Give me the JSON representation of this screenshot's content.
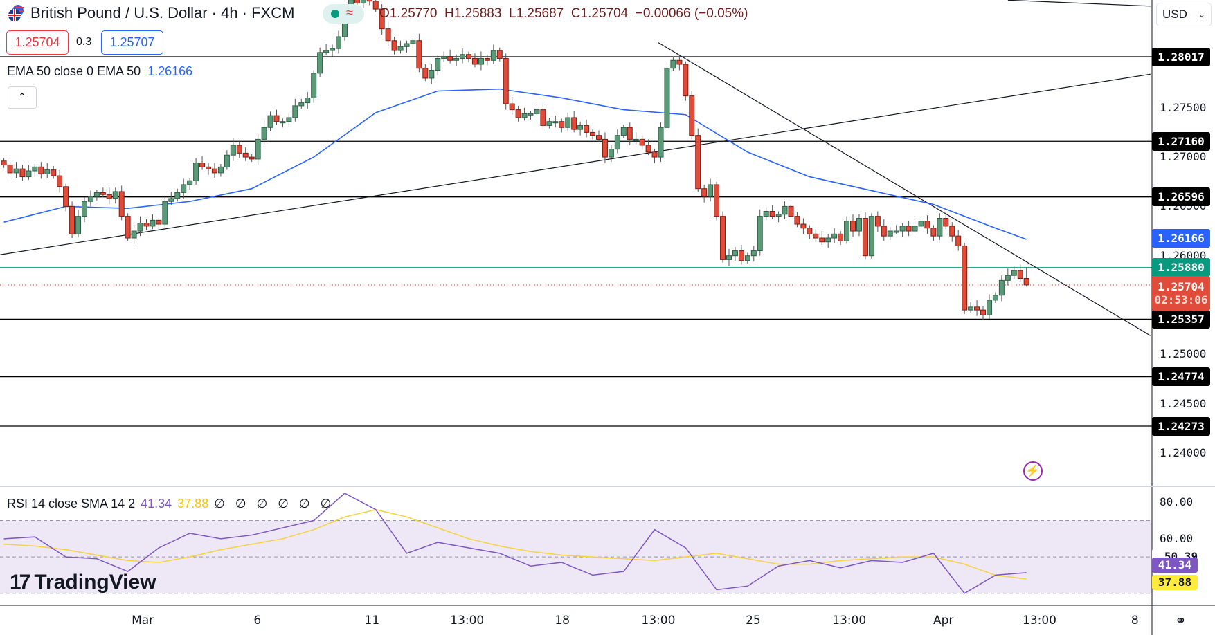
{
  "header": {
    "symbol_title": "British Pound / U.S. Dollar · 4h · FXCM",
    "ohlc": {
      "open": "O1.25770",
      "high": "H1.25883",
      "low": "L1.25687",
      "close": "C1.25704",
      "change": "−0.00066 (−0.05%)"
    },
    "bid": "1.25704",
    "spread": "0.3",
    "ask": "1.25707",
    "currency": "USD",
    "status_icon": "market-open-dot",
    "replay_icon": "approx-icon"
  },
  "ema_legend": {
    "label": "EMA 50 close 0 EMA 50",
    "value": "1.26166"
  },
  "rsi_legend": {
    "label": "RSI 14 close SMA 14 2",
    "rsi": "41.34",
    "sma": "37.88",
    "empty": "∅ ∅ ∅ ∅ ∅ ∅"
  },
  "logo": "TradingView",
  "colors": {
    "up": "#26a69a",
    "up_body": "#5b9a78",
    "down": "#e04b3a",
    "ema": "#2962ff",
    "rsi": "#7e57c2",
    "rsi_sma": "#f7d23c",
    "rsi_band": "#ede7f6",
    "support_green": "#089981",
    "last_price": "#e04b3a"
  },
  "chart_data": {
    "type": "candlestick",
    "timeframe": "4h",
    "x_ticks": [
      "Mar",
      "6",
      "11",
      "13:00",
      "18",
      "13:00",
      "25",
      "13:00",
      "Apr",
      "13:00",
      "8"
    ],
    "price_ticks": [
      "1.27500",
      "1.27000",
      "1.26500",
      "1.26000",
      "1.25000",
      "1.24500",
      "1.24000"
    ],
    "ylim": [
      1.236,
      1.2878
    ],
    "last_candle": {
      "open": 1.2577,
      "high": 1.25883,
      "low": 1.25687,
      "close": 1.25704
    },
    "closes": [
      1.2692,
      1.2684,
      1.2688,
      1.268,
      1.2686,
      1.269,
      1.2683,
      1.2687,
      1.2681,
      1.267,
      1.265,
      1.2622,
      1.264,
      1.2655,
      1.266,
      1.2664,
      1.2662,
      1.2658,
      1.2665,
      1.264,
      1.2618,
      1.2625,
      1.2633,
      1.263,
      1.2636,
      1.2632,
      1.2655,
      1.2658,
      1.2664,
      1.2672,
      1.2676,
      1.2694,
      1.269,
      1.2688,
      1.2684,
      1.269,
      1.2702,
      1.2712,
      1.2704,
      1.27,
      1.2698,
      1.2718,
      1.273,
      1.2742,
      1.2736,
      1.2736,
      1.274,
      1.2752,
      1.2755,
      1.276,
      1.2785,
      1.2806,
      1.2808,
      1.281,
      1.2822,
      1.2848,
      1.286,
      1.2856,
      1.2862,
      1.2858,
      1.285,
      1.283,
      1.2818,
      1.2808,
      1.2812,
      1.2815,
      1.2818,
      1.279,
      1.278,
      1.2788,
      1.28,
      1.2802,
      1.2798,
      1.28,
      1.2804,
      1.28,
      1.2794,
      1.28,
      1.2798,
      1.2808,
      1.28,
      1.2754,
      1.2748,
      1.274,
      1.2744,
      1.2744,
      1.2748,
      1.2732,
      1.2736,
      1.2736,
      1.273,
      1.274,
      1.2728,
      1.2732,
      1.2725,
      1.2722,
      1.2718,
      1.27,
      1.2708,
      1.2722,
      1.273,
      1.2718,
      1.2718,
      1.2712,
      1.2705,
      1.27,
      1.273,
      1.279,
      1.2798,
      1.2794,
      1.2762,
      1.2722,
      1.2668,
      1.266,
      1.2672,
      1.264,
      1.2596,
      1.26,
      1.2605,
      1.2595,
      1.26,
      1.2605,
      1.264,
      1.2645,
      1.264,
      1.2642,
      1.265,
      1.264,
      1.2632,
      1.2628,
      1.2622,
      1.2618,
      1.2614,
      1.2618,
      1.2622,
      1.2615,
      1.2635,
      1.2625,
      1.2638,
      1.26,
      1.264,
      1.263,
      1.262,
      1.2625,
      1.2625,
      1.263,
      1.2625,
      1.263,
      1.2635,
      1.2628,
      1.262,
      1.2638,
      1.263,
      1.262,
      1.261,
      1.2545,
      1.2548,
      1.2545,
      1.254,
      1.2555,
      1.256,
      1.2575,
      1.258,
      1.2585,
      1.2577,
      1.25704
    ],
    "ema50": [
      1.2634,
      1.265,
      1.2648,
      1.2655,
      1.2668,
      1.27,
      1.2745,
      1.2767,
      1.2769,
      1.276,
      1.2748,
      1.2743,
      1.2705,
      1.268,
      1.2666,
      1.2652,
      1.2628,
      1.26166
    ],
    "horizontal_levels": [
      {
        "price": 1.28017,
        "label": "1.28017",
        "color": "#000000"
      },
      {
        "price": 1.2716,
        "label": "1.27160",
        "color": "#000000"
      },
      {
        "price": 1.26596,
        "label": "1.26596",
        "color": "#000000"
      },
      {
        "price": 1.25357,
        "label": "1.25357",
        "color": "#000000"
      },
      {
        "price": 1.24774,
        "label": "1.24774",
        "color": "#000000"
      },
      {
        "price": 1.24273,
        "label": "1.24273",
        "color": "#000000"
      },
      {
        "price": 1.2588,
        "label": "1.25880",
        "color": "#089981"
      }
    ],
    "ema_label": "1.26166",
    "last_price_label": "1.25704",
    "countdown": "02:53:06",
    "trend_lines": [
      {
        "from_price": 1.2601,
        "to_price": 1.2784
      },
      {
        "from_price": 1.2816,
        "to_price": 1.2519
      },
      {
        "from_price": 1.2859,
        "to_price": 1.2853
      }
    ],
    "rsi": {
      "values": [
        60,
        61,
        50,
        49,
        42,
        55,
        63,
        60,
        62,
        66,
        70,
        85,
        76,
        52,
        58,
        55,
        52,
        45,
        47,
        40,
        42,
        65,
        55,
        32,
        34,
        45,
        48,
        44,
        48,
        47,
        52,
        30,
        40,
        41.34
      ],
      "sma": [
        57,
        56,
        54,
        51,
        48,
        47,
        50,
        54,
        57,
        60,
        65,
        72,
        76,
        72,
        66,
        60,
        56,
        53,
        51,
        50,
        49,
        48,
        50,
        52,
        49,
        46,
        46,
        48,
        49,
        50,
        50,
        46,
        40,
        37.88
      ],
      "band": [
        30,
        70
      ],
      "axis_ticks": [
        "80.00",
        "60.00"
      ],
      "midline_label": "50.39",
      "rsi_label": "41.34",
      "sma_label": "37.88"
    }
  }
}
